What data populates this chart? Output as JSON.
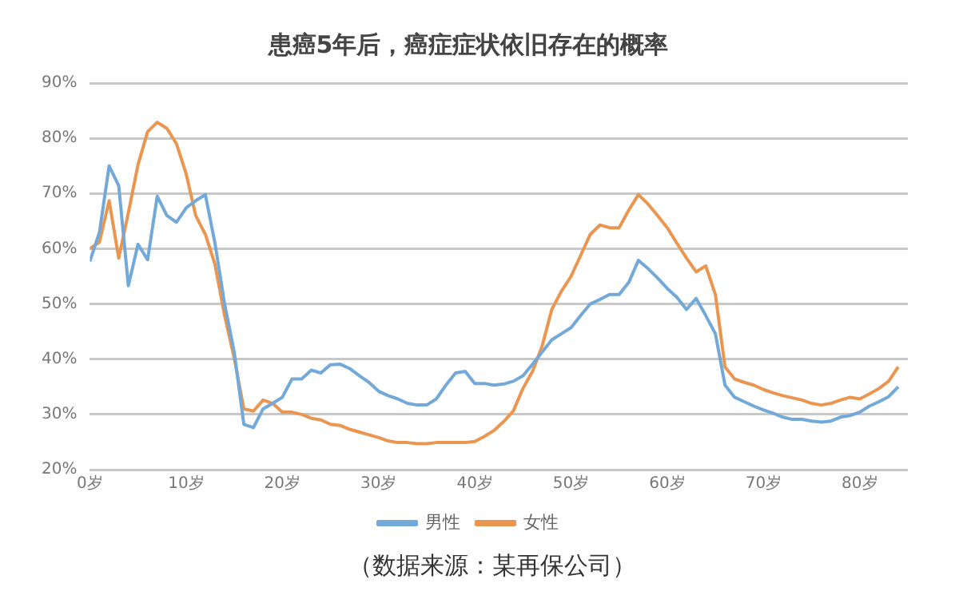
{
  "chart_data": {
    "type": "line",
    "title": "患癌5年后，癌症症状依旧存在的概率",
    "x": [
      0,
      1,
      2,
      3,
      4,
      5,
      6,
      7,
      8,
      9,
      10,
      11,
      12,
      13,
      14,
      15,
      16,
      17,
      18,
      19,
      20,
      21,
      22,
      23,
      24,
      25,
      26,
      27,
      28,
      29,
      30,
      31,
      32,
      33,
      34,
      35,
      36,
      37,
      38,
      39,
      40,
      41,
      42,
      43,
      44,
      45,
      46,
      47,
      48,
      49,
      50,
      51,
      52,
      53,
      54,
      55,
      56,
      57,
      58,
      59,
      60,
      61,
      62,
      63,
      64,
      65,
      66,
      67,
      68,
      69,
      70,
      71,
      72,
      73,
      74,
      75,
      76,
      77,
      78,
      79,
      80,
      81,
      82,
      83,
      84
    ],
    "series": [
      {
        "name": "男性",
        "color": "#72a9d8",
        "values": [
          57.7,
          63,
          75,
          71.4,
          53.3,
          60.8,
          58,
          69.5,
          66,
          64.8,
          67.4,
          68.7,
          69.8,
          61,
          50,
          41.3,
          28.2,
          27.6,
          31,
          32,
          33.1,
          36.4,
          36.4,
          38,
          37.5,
          39,
          39.1,
          38.3,
          37,
          35.8,
          34.2,
          33.4,
          32.8,
          32,
          31.7,
          31.7,
          32.8,
          35.3,
          37.5,
          37.8,
          35.6,
          35.6,
          35.3,
          35.5,
          36,
          37,
          39.1,
          41.3,
          43.5,
          44.6,
          45.7,
          47.9,
          50,
          50.8,
          51.7,
          51.7,
          53.9,
          57.9,
          56.4,
          54.7,
          52.8,
          51.2,
          49,
          51,
          47.9,
          44.6,
          35.3,
          33.1,
          32.3,
          31.5,
          30.8,
          30.2,
          29.5,
          29.1,
          29.1,
          28.8,
          28.6,
          28.8,
          29.5,
          29.8,
          30.4,
          31.5,
          32.3,
          33.2,
          35
        ]
      },
      {
        "name": "女性",
        "color": "#ea9550",
        "values": [
          60,
          61.2,
          68.7,
          58.3,
          66.5,
          75.2,
          81.2,
          82.9,
          81.8,
          79,
          73.6,
          66,
          62.6,
          57.2,
          47.9,
          40.2,
          31,
          30.6,
          32.6,
          32,
          30.4,
          30.4,
          30,
          29.3,
          29,
          28.2,
          28,
          27.3,
          26.8,
          26.3,
          25.8,
          25.2,
          24.9,
          24.9,
          24.7,
          24.7,
          24.9,
          24.9,
          24.9,
          24.9,
          25.1,
          26,
          27.1,
          28.7,
          30.6,
          34.7,
          37.8,
          42.4,
          49,
          52.3,
          55,
          58.8,
          62.6,
          64.3,
          63.8,
          63.8,
          67,
          69.8,
          68.1,
          66,
          63.8,
          61,
          58.3,
          55.8,
          56.9,
          51.7,
          38.6,
          36.4,
          35.8,
          35.3,
          34.5,
          33.9,
          33.4,
          33,
          32.6,
          32,
          31.7,
          32,
          32.6,
          33.1,
          32.8,
          33.7,
          34.7,
          36,
          38.6
        ]
      }
    ],
    "xlim": [
      0,
      85
    ],
    "xticks": [
      {
        "value": 0,
        "label": "0岁"
      },
      {
        "value": 10,
        "label": "10岁"
      },
      {
        "value": 20,
        "label": "20岁"
      },
      {
        "value": 30,
        "label": "30岁"
      },
      {
        "value": 40,
        "label": "40岁"
      },
      {
        "value": 50,
        "label": "50岁"
      },
      {
        "value": 60,
        "label": "60岁"
      },
      {
        "value": 70,
        "label": "70岁"
      },
      {
        "value": 80,
        "label": "80岁"
      }
    ],
    "ylim": [
      20,
      90
    ],
    "yticks": [
      {
        "value": 20,
        "label": "20%"
      },
      {
        "value": 30,
        "label": "30%"
      },
      {
        "value": 40,
        "label": "40%"
      },
      {
        "value": 50,
        "label": "50%"
      },
      {
        "value": 60,
        "label": "60%"
      },
      {
        "value": 70,
        "label": "70%"
      },
      {
        "value": 80,
        "label": "80%"
      },
      {
        "value": 90,
        "label": "90%"
      }
    ],
    "grid": "y",
    "legend": "bottom",
    "marker": "none",
    "line_style": "solid",
    "annotations": [
      "（数据来源：某再保公司）"
    ]
  }
}
